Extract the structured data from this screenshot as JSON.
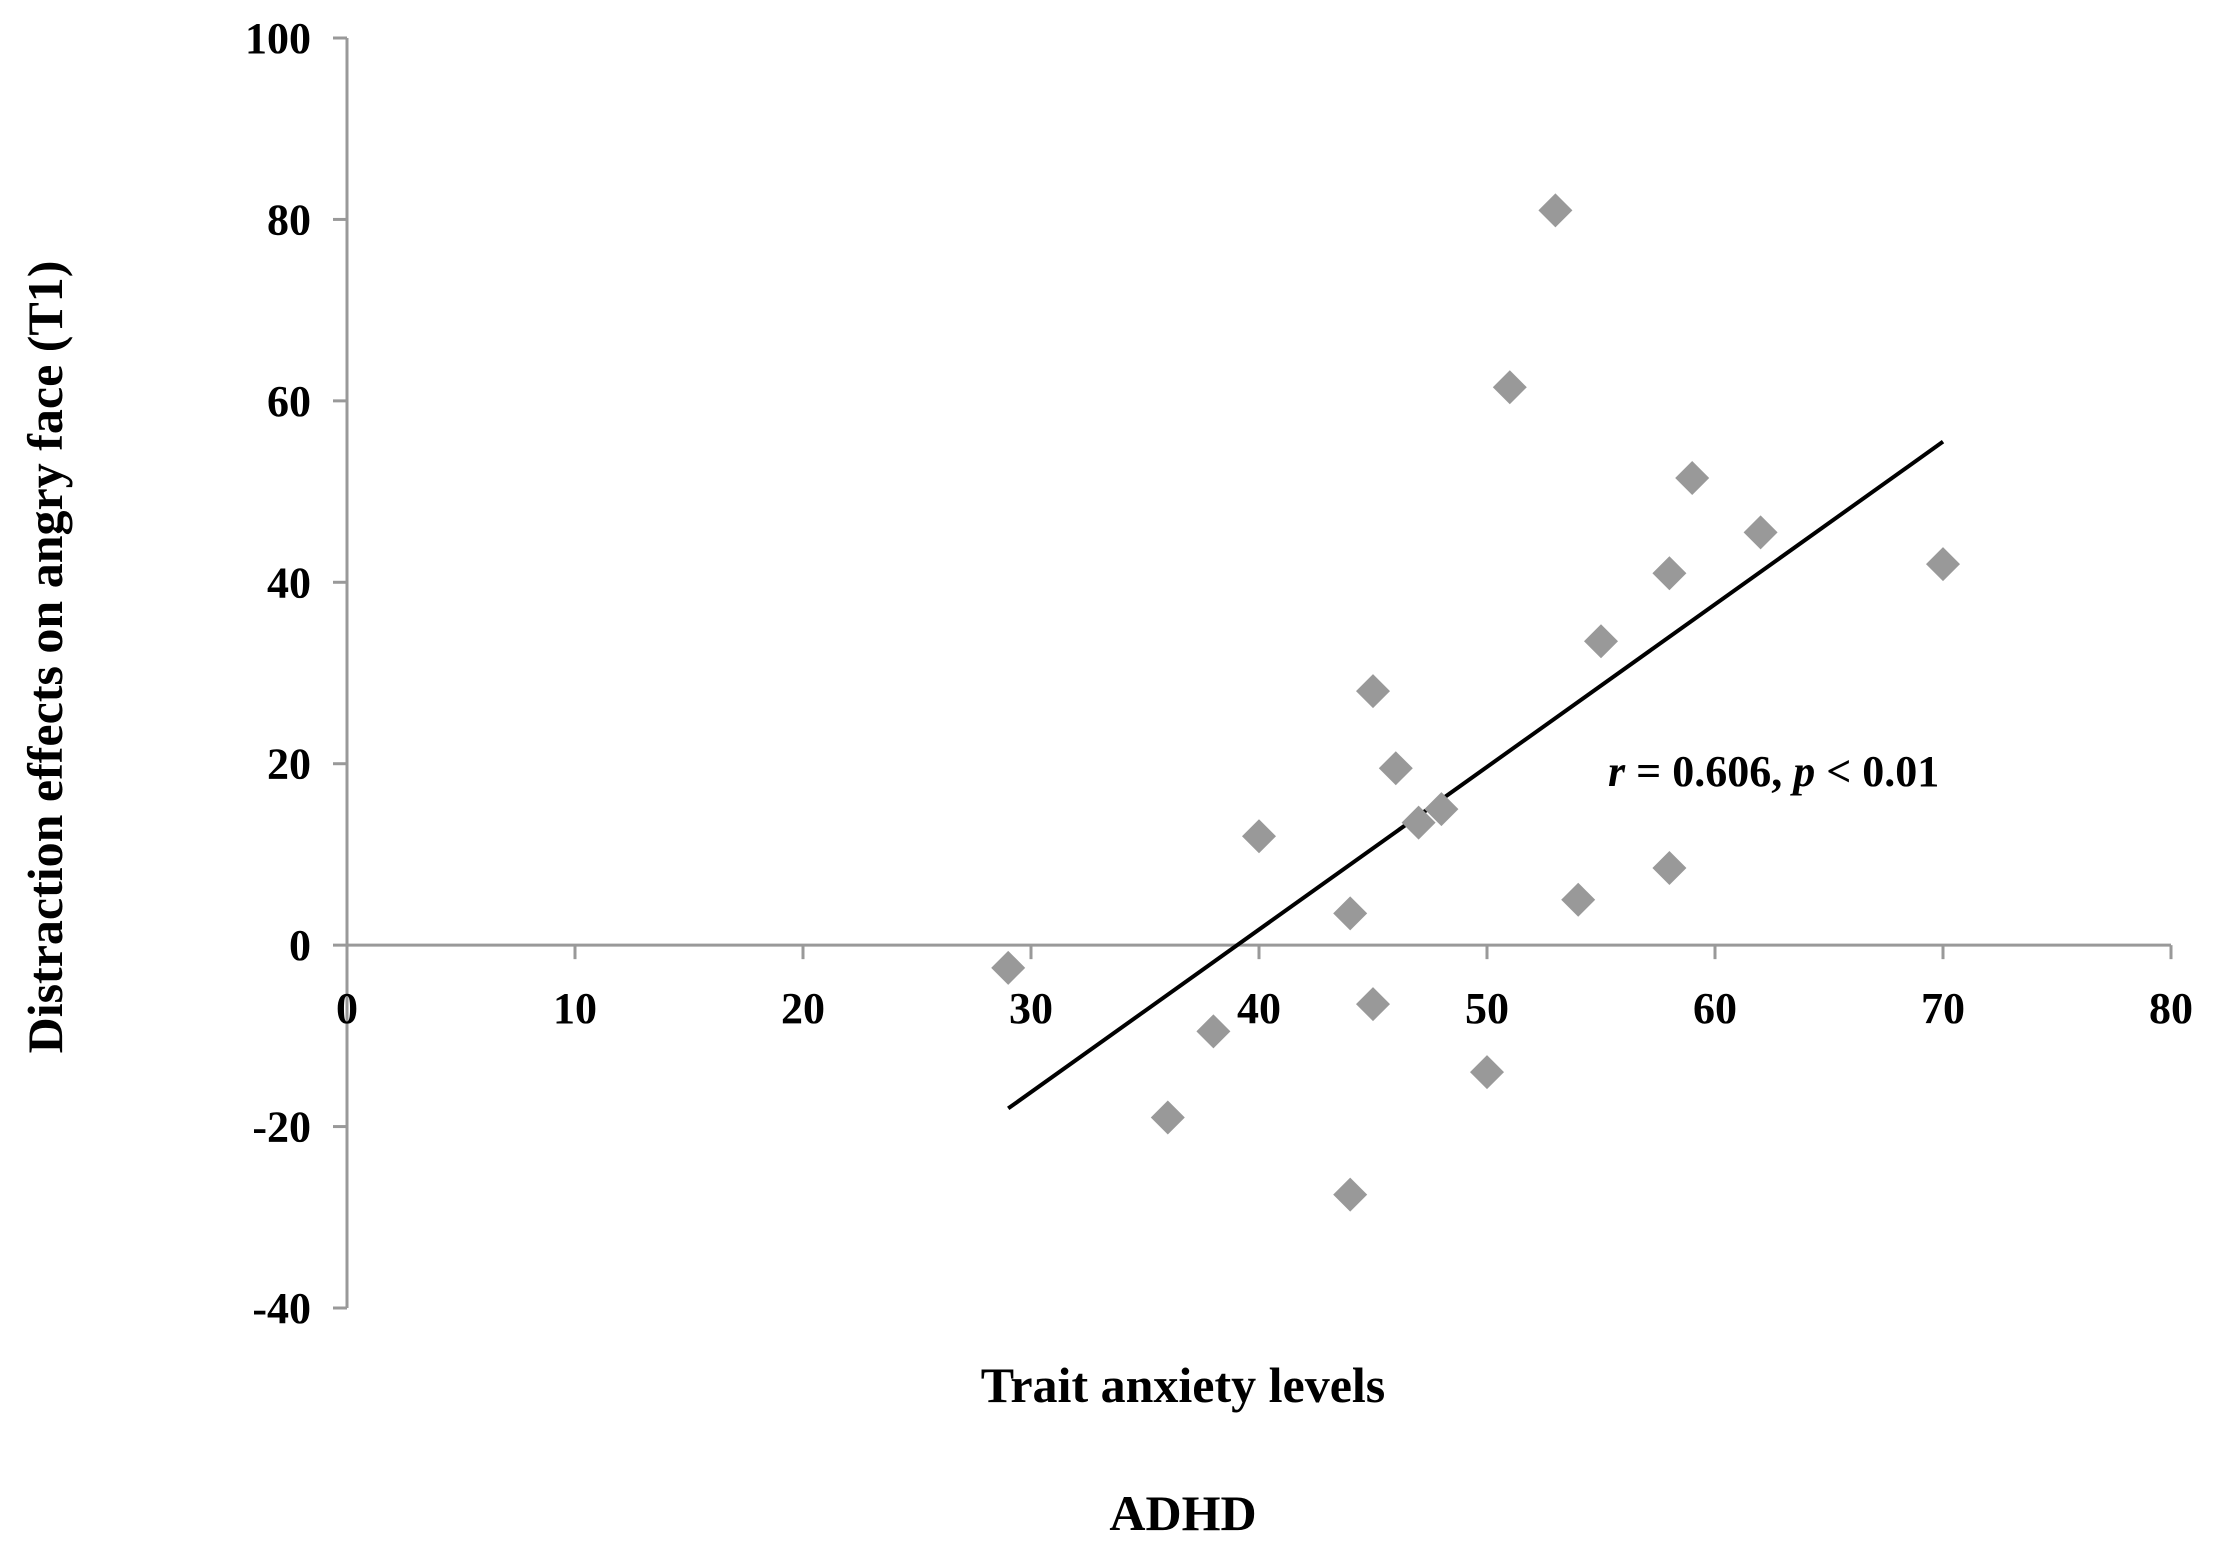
{
  "chart_data": {
    "type": "scatter",
    "title": "",
    "subtitle": "ADHD",
    "xlabel": "Trait anxiety levels",
    "ylabel": "Distraction effects on angry face (T1)",
    "xlim": [
      0,
      80
    ],
    "ylim": [
      -40,
      100
    ],
    "xticks": [
      0,
      10,
      20,
      30,
      40,
      50,
      60,
      70,
      80
    ],
    "yticks": [
      -40,
      -20,
      0,
      20,
      40,
      60,
      80,
      100
    ],
    "xtick_labels": [
      "0",
      "10",
      "20",
      "30",
      "40",
      "50",
      "60",
      "70",
      "80"
    ],
    "ytick_labels": [
      "-40",
      "-20",
      "0",
      "20",
      "40",
      "60",
      "80",
      "100"
    ],
    "grid": false,
    "marker": "diamond",
    "series": [
      {
        "name": "ADHD",
        "points": [
          {
            "x": 29,
            "y": -2.5
          },
          {
            "x": 36,
            "y": -19
          },
          {
            "x": 38,
            "y": -9.5
          },
          {
            "x": 40,
            "y": 12
          },
          {
            "x": 44,
            "y": 3.5
          },
          {
            "x": 44,
            "y": -27.5
          },
          {
            "x": 45,
            "y": 28
          },
          {
            "x": 45,
            "y": -6.5
          },
          {
            "x": 46,
            "y": 19.5
          },
          {
            "x": 47,
            "y": 13.5
          },
          {
            "x": 48,
            "y": 15
          },
          {
            "x": 50,
            "y": -14
          },
          {
            "x": 51,
            "y": 61.5
          },
          {
            "x": 53,
            "y": 81
          },
          {
            "x": 54,
            "y": 5
          },
          {
            "x": 55,
            "y": 33.5
          },
          {
            "x": 58,
            "y": 41
          },
          {
            "x": 58,
            "y": 8.5
          },
          {
            "x": 59,
            "y": 51.5
          },
          {
            "x": 62,
            "y": 45.5
          },
          {
            "x": 70,
            "y": 42
          }
        ]
      }
    ],
    "trendline": {
      "x": [
        29,
        70
      ],
      "y": [
        -18,
        55.5
      ]
    },
    "annotation": {
      "r_symbol": "r",
      "r_text": " = 0.606, ",
      "p_symbol": "p",
      "p_text": " < 0.01"
    },
    "colors": {
      "marker": "#999999",
      "axis": "#999999",
      "trendline": "#000000",
      "text": "#000000"
    }
  }
}
